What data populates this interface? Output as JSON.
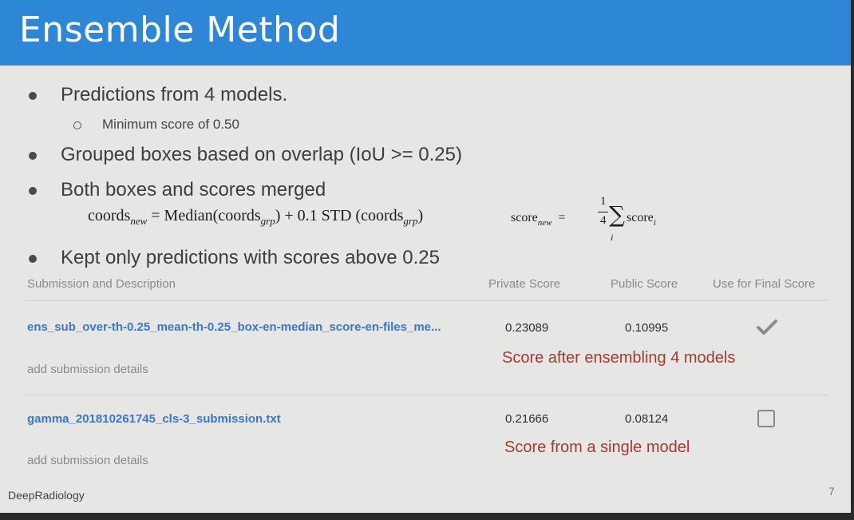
{
  "slide": {
    "title": "Ensemble Method",
    "bullets": [
      "Predictions from 4 models.",
      "Grouped boxes based on overlap (IoU >= 0.25)",
      "Both boxes and scores merged",
      "Kept only predictions with scores above 0.25"
    ],
    "sub_bullet": "Minimum score of 0.50",
    "formula": {
      "coords_left": "coords",
      "coords_left_sub": "new",
      "coords_eq": " = Median(coords",
      "coords_grp_sub1": "grp",
      "coords_mid": ") + 0.1 STD (coords",
      "coords_grp_sub2": "grp",
      "coords_end": ")",
      "score_left": "score",
      "score_left_sub": "new",
      "score_eq": "=",
      "frac_num": "1",
      "frac_den": "4",
      "sigma": "∑",
      "sum_index": "i",
      "score_term": "score",
      "score_term_sub": "i"
    },
    "footer": "DeepRadiology",
    "page_number": "7"
  },
  "table": {
    "headers": {
      "submission": "Submission and Description",
      "private": "Private Score",
      "public": "Public Score",
      "final": "Use for Final Score"
    },
    "rows": [
      {
        "name": "ens_sub_over-th-0.25_mean-th-0.25_box-en-median_score-en-files_me...",
        "details": "add submission details",
        "private": "0.23089",
        "public": "0.10995",
        "annotation": "Score after ensembling 4 models",
        "selected": true
      },
      {
        "name": "gamma_201810261745_cls-3_submission.txt",
        "details": "add submission details",
        "private": "0.21666",
        "public": "0.08124",
        "annotation": "Score from a single model",
        "selected": false
      }
    ]
  },
  "colors": {
    "title_bar": "#2e86d6",
    "link": "#3a78c9",
    "annotation": "#a23c33"
  },
  "icons": [
    "bullet-dot-icon",
    "hollow-circle-icon",
    "checkmark-icon",
    "checkbox-icon"
  ]
}
